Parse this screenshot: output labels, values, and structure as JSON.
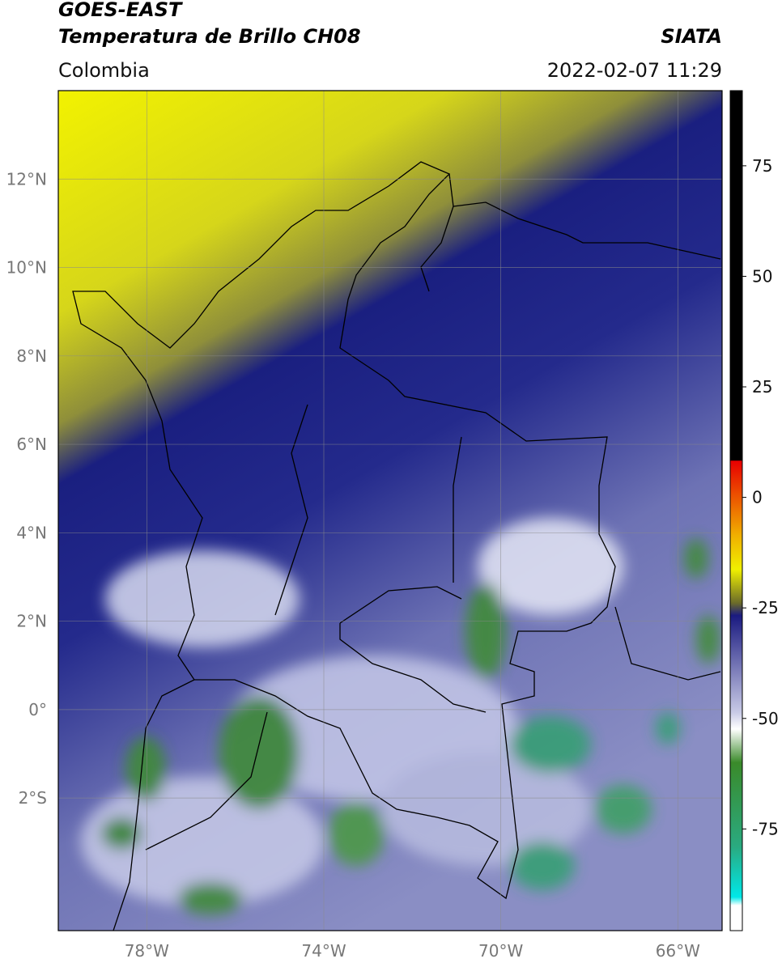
{
  "header": {
    "title": "GOES-EAST",
    "subtitle": "Temperatura de Brillo CH08",
    "source": "SIATA",
    "region": "Colombia",
    "datetime": "2022-02-07 11:29"
  },
  "map": {
    "lon_range": [
      -80,
      -65
    ],
    "lat_range": [
      -5,
      14
    ],
    "lon_ticks": [
      {
        "value": -78,
        "label": "78°W"
      },
      {
        "value": -74,
        "label": "74°W"
      },
      {
        "value": -70,
        "label": "70°W"
      },
      {
        "value": -66,
        "label": "66°W"
      }
    ],
    "lat_ticks": [
      {
        "value": 12,
        "label": "12°N"
      },
      {
        "value": 10,
        "label": "10°N"
      },
      {
        "value": 8,
        "label": "8°N"
      },
      {
        "value": 6,
        "label": "6°N"
      },
      {
        "value": 4,
        "label": "4°N"
      },
      {
        "value": 2,
        "label": "2°N"
      },
      {
        "value": 0,
        "label": "0°"
      },
      {
        "value": -2,
        "label": "2°S"
      }
    ]
  },
  "colorbar": {
    "range": [
      -98,
      92
    ],
    "ticks": [
      75,
      50,
      25,
      0,
      -25,
      -50,
      -75
    ]
  }
}
